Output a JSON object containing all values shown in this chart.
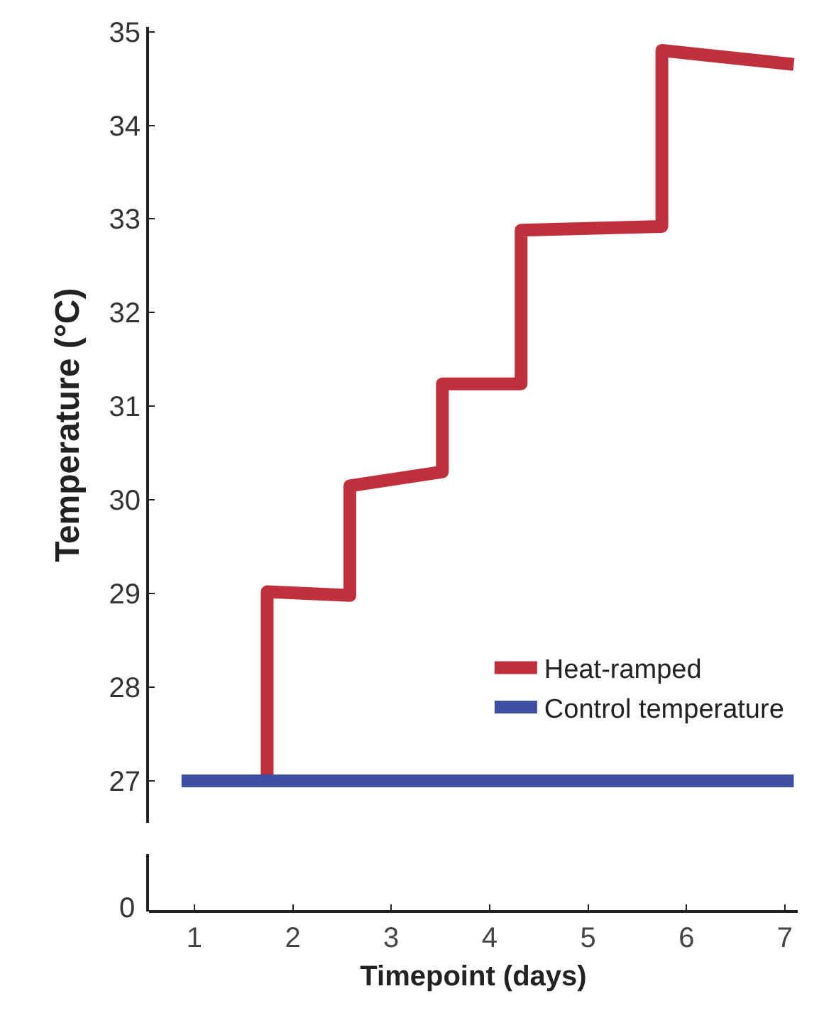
{
  "chart_data": {
    "type": "line",
    "xlabel": "Timepoint (days)",
    "ylabel": "Temperature (°C)",
    "xlim": [
      0.54,
      7.13
    ],
    "xticks": [
      1,
      2,
      3,
      4,
      5,
      6,
      7
    ],
    "ylim": [
      26.55,
      35.05
    ],
    "yticks": [
      27,
      28,
      29,
      30,
      31,
      32,
      33,
      34,
      35
    ],
    "annotations": [
      "0"
    ],
    "grid": false,
    "legend": "bottom right",
    "marker": "none",
    "line_style": "solid",
    "series": [
      {
        "name": "Heat-ramped",
        "color": "#c0303c",
        "x": [
          1.74,
          1.74,
          2.58,
          2.58,
          3.52,
          3.52,
          4.32,
          4.32,
          5.75,
          5.75,
          7.09
        ],
        "values": [
          27,
          29.02,
          28.98,
          30.15,
          30.3,
          31.24,
          31.24,
          32.88,
          32.92,
          34.8,
          34.65
        ]
      },
      {
        "name": "Control temperature",
        "color": "#3f4ea3",
        "x": [
          0.87,
          7.09
        ],
        "values": [
          27,
          27
        ]
      }
    ]
  }
}
